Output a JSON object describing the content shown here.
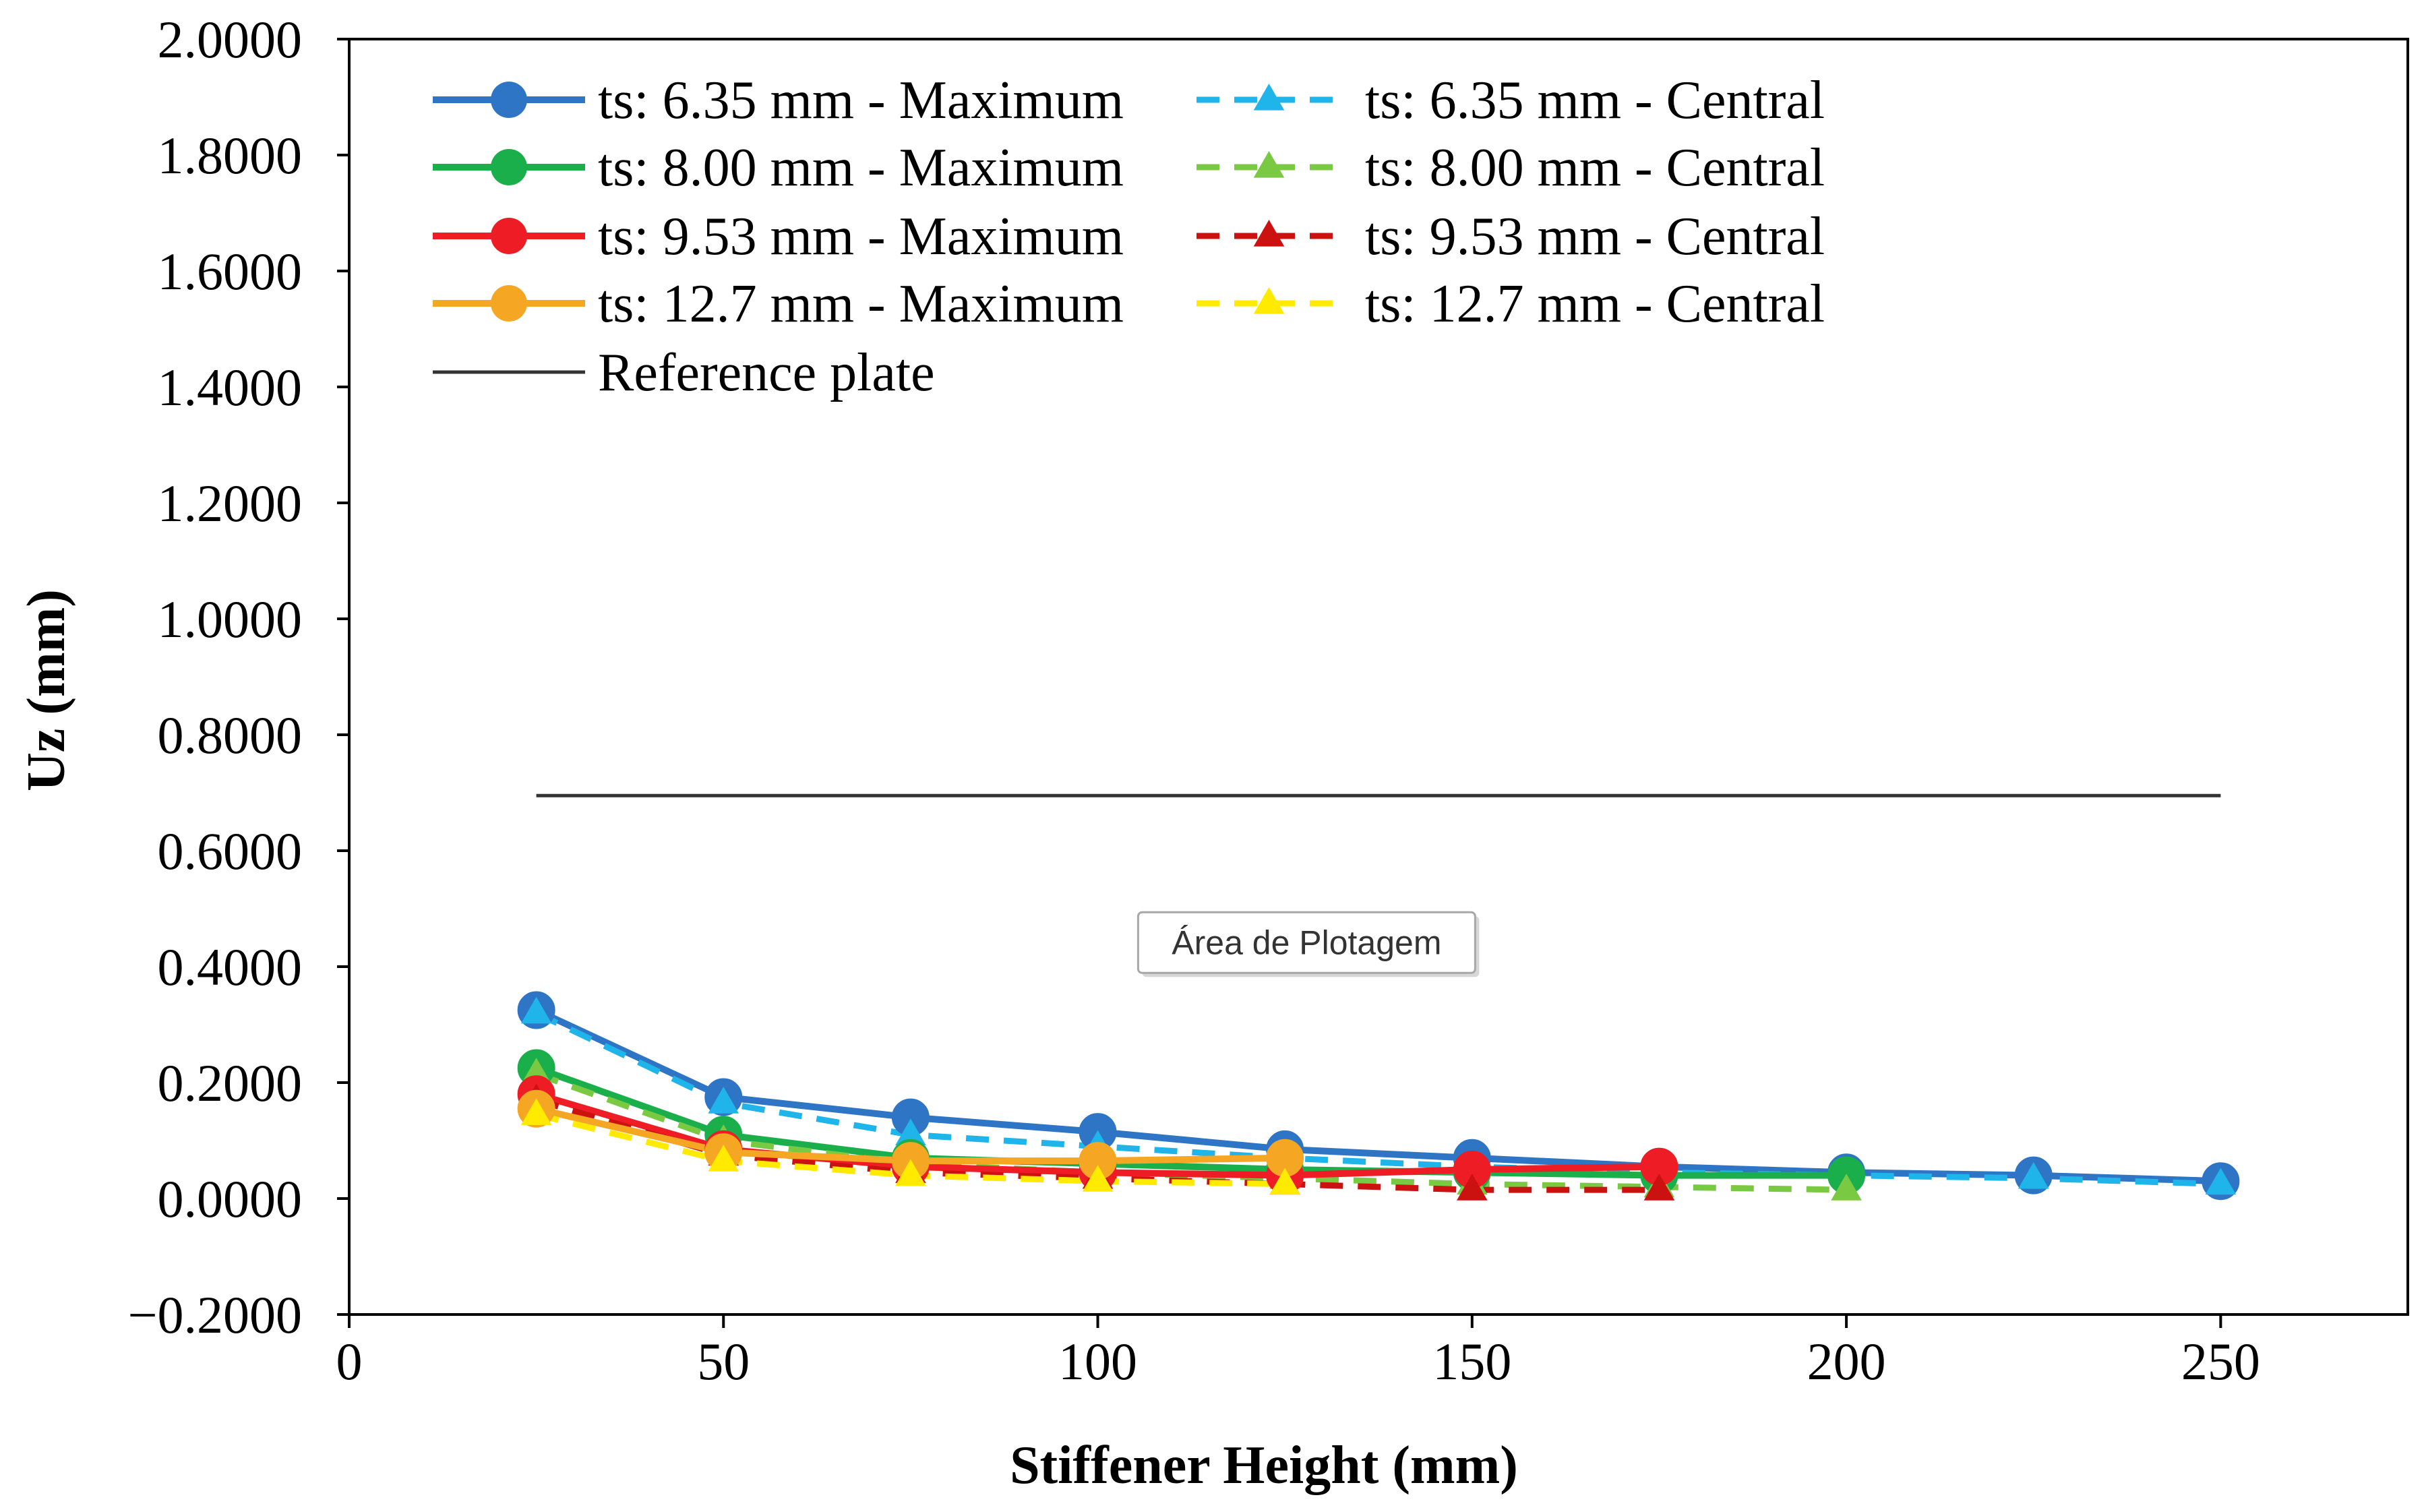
{
  "chart_data": {
    "type": "line",
    "title": "",
    "xlabel": "Stiffener Height (mm)",
    "ylabel": "Uz (mm)",
    "xlim": [
      0,
      275
    ],
    "ylim": [
      -0.2,
      2.0
    ],
    "x_ticks": [
      0,
      50,
      100,
      150,
      200,
      250
    ],
    "x_tick_labels": [
      "0",
      "50",
      "100",
      "150",
      "200",
      "250"
    ],
    "y_ticks": [
      -0.2,
      0.0,
      0.2,
      0.4,
      0.6,
      0.8,
      1.0,
      1.2,
      1.4,
      1.6,
      1.8,
      2.0
    ],
    "y_tick_labels": [
      "−0.2000",
      "0.0000",
      "0.2000",
      "0.4000",
      "0.6000",
      "0.8000",
      "1.0000",
      "1.2000",
      "1.4000",
      "1.6000",
      "1.8000",
      "2.0000"
    ],
    "grid": false,
    "legend_position": "top-left",
    "series": [
      {
        "name": "ts: 6.35 mm - Maximum",
        "color": "#2E75C6",
        "style": "solid",
        "marker": "circle",
        "x": [
          25,
          50,
          75,
          100,
          125,
          150,
          175,
          200,
          225,
          250
        ],
        "y": [
          0.325,
          0.175,
          0.14,
          0.115,
          0.085,
          0.07,
          0.055,
          0.045,
          0.04,
          0.03
        ]
      },
      {
        "name": "ts: 6.35 mm - Central",
        "color": "#1FB5EA",
        "style": "dashed",
        "marker": "triangle",
        "x": [
          25,
          50,
          75,
          100,
          125,
          150,
          175,
          200,
          225,
          250
        ],
        "y": [
          0.32,
          0.165,
          0.11,
          0.09,
          0.07,
          0.055,
          0.045,
          0.04,
          0.035,
          0.025
        ]
      },
      {
        "name": "ts: 8.00 mm - Maximum",
        "color": "#1BAF4B",
        "style": "solid",
        "marker": "circle",
        "x": [
          25,
          50,
          75,
          100,
          125,
          150,
          175,
          200
        ],
        "y": [
          0.225,
          0.11,
          0.07,
          0.06,
          0.05,
          0.045,
          0.04,
          0.04
        ]
      },
      {
        "name": "ts: 8.00 mm - Central",
        "color": "#7AC943",
        "style": "dashed",
        "marker": "triangle",
        "x": [
          25,
          50,
          75,
          100,
          125,
          150,
          175,
          200
        ],
        "y": [
          0.215,
          0.1,
          0.06,
          0.045,
          0.035,
          0.025,
          0.02,
          0.015
        ]
      },
      {
        "name": "ts: 9.53 mm - Maximum",
        "color": "#EE1C25",
        "style": "solid",
        "marker": "circle",
        "x": [
          25,
          50,
          75,
          100,
          125,
          150,
          175
        ],
        "y": [
          0.18,
          0.085,
          0.055,
          0.045,
          0.04,
          0.05,
          0.055
        ]
      },
      {
        "name": "ts: 9.53 mm - Central",
        "color": "#CC1111",
        "style": "dashed",
        "marker": "triangle",
        "x": [
          25,
          50,
          75,
          100,
          125,
          150,
          175
        ],
        "y": [
          0.17,
          0.075,
          0.045,
          0.035,
          0.025,
          0.015,
          0.015
        ]
      },
      {
        "name": "ts: 12.7 mm - Maximum",
        "color": "#F5A623",
        "style": "solid",
        "marker": "circle",
        "x": [
          25,
          50,
          75,
          100,
          125
        ],
        "y": [
          0.155,
          0.08,
          0.065,
          0.065,
          0.07
        ]
      },
      {
        "name": "ts: 12.7 mm - Central",
        "color": "#FFEA00",
        "style": "dashed",
        "marker": "triangle",
        "x": [
          25,
          50,
          75,
          100,
          125
        ],
        "y": [
          0.145,
          0.065,
          0.04,
          0.03,
          0.025
        ]
      },
      {
        "name": "Reference plate",
        "color": "#333333",
        "style": "thin",
        "marker": "none",
        "x": [
          25,
          250
        ],
        "y": [
          0.695,
          0.695
        ]
      }
    ],
    "annotations": [
      {
        "text": "Área de Plotagem",
        "x": 127,
        "y": 0.445
      }
    ]
  }
}
